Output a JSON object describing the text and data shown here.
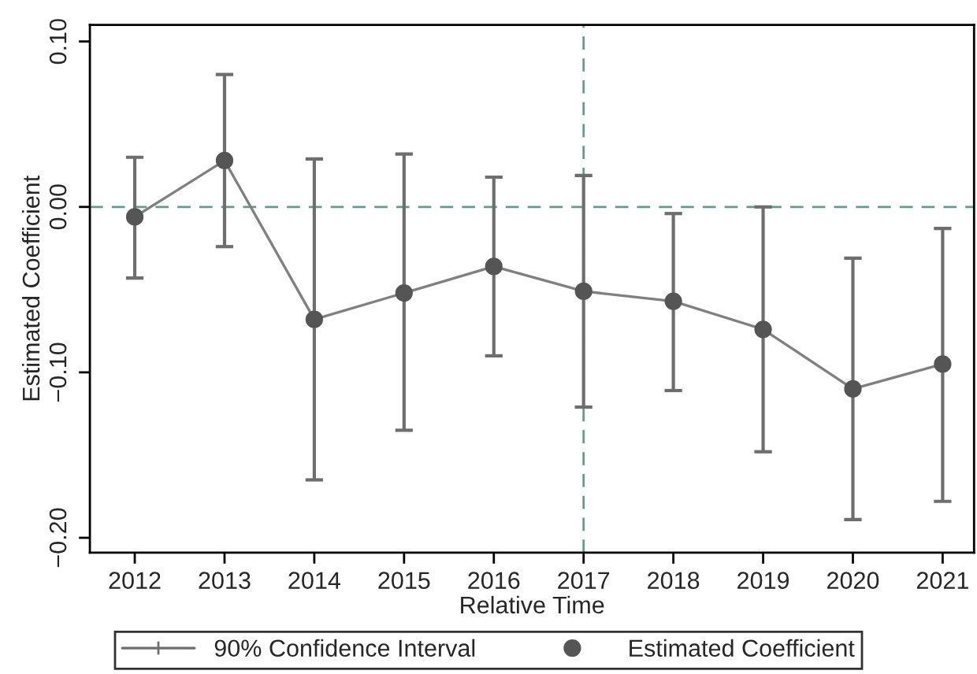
{
  "chart_data": {
    "type": "line",
    "xlabel": "Relative Time",
    "ylabel": "Estimated Coefficient",
    "x": [
      2012,
      2013,
      2014,
      2015,
      2016,
      2017,
      2018,
      2019,
      2020,
      2021
    ],
    "series": [
      {
        "name": "Estimated Coefficient",
        "color": "#555555",
        "values": [
          -0.006,
          0.028,
          -0.068,
          -0.052,
          -0.036,
          -0.051,
          -0.057,
          -0.074,
          -0.11,
          -0.095
        ],
        "errors": [
          [
            -0.043,
            0.03
          ],
          [
            -0.024,
            0.08
          ],
          [
            -0.165,
            0.029
          ],
          [
            -0.135,
            0.032
          ],
          [
            -0.09,
            0.018
          ],
          [
            -0.121,
            0.019
          ],
          [
            -0.111,
            -0.004
          ],
          [
            -0.148,
            0.0
          ],
          [
            -0.189,
            -0.031
          ],
          [
            -0.178,
            -0.013
          ]
        ]
      }
    ],
    "annotations": [
      "90% Confidence Interval"
    ],
    "xlim": [
      2011.5,
      2021.35
    ],
    "xticks": [
      2012,
      2013,
      2014,
      2015,
      2016,
      2017,
      2018,
      2019,
      2020,
      2021
    ],
    "ylim": [
      -0.209,
      0.11
    ],
    "yticks": [
      {
        "value": -0.2,
        "label": "−0.20"
      },
      {
        "value": -0.1,
        "label": "−0.10"
      },
      {
        "value": 0,
        "label": "0.00"
      },
      {
        "value": 0.1,
        "label": "0.10"
      }
    ],
    "ref_lines": [
      {
        "axis": "y",
        "value": 0,
        "color": "#5f9e8f",
        "line_style": "dashed"
      },
      {
        "axis": "x",
        "value": 2017,
        "color": "#5f9e8f",
        "line_style": "dashed"
      }
    ],
    "marker": "circle",
    "line_style": "solid",
    "grid": false,
    "legend": "bottom"
  }
}
